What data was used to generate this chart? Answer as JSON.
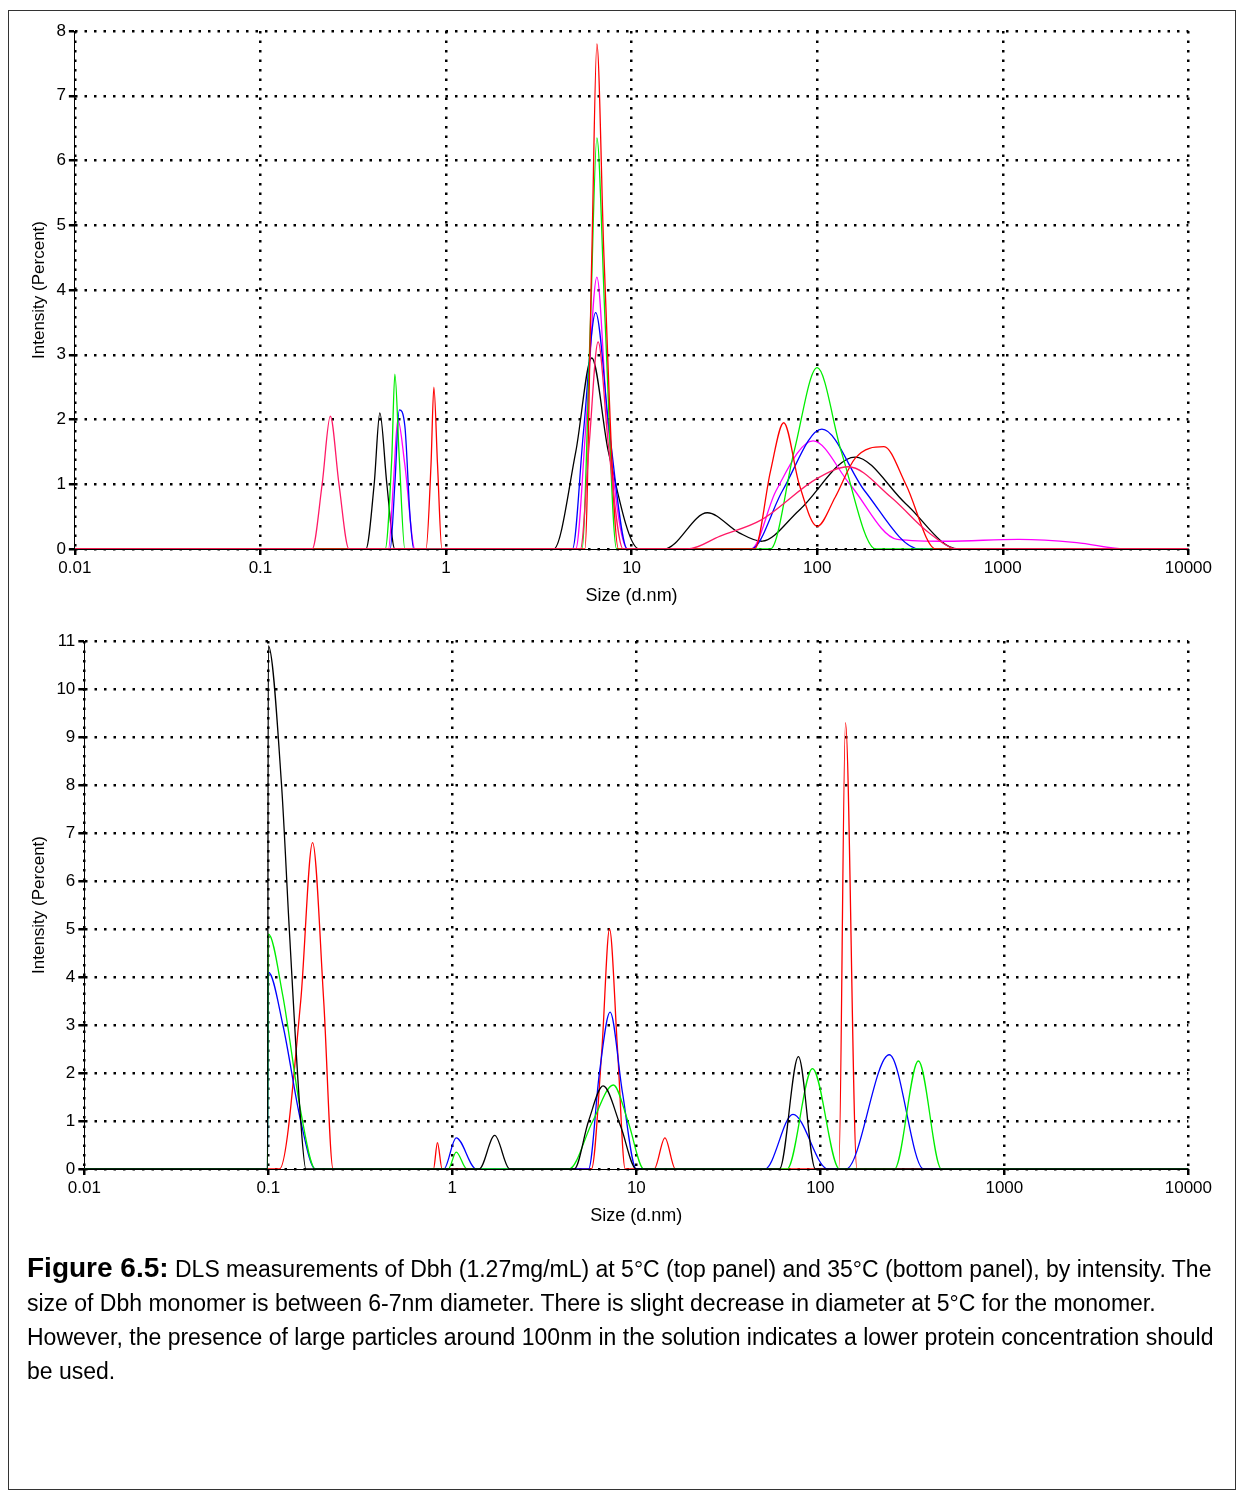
{
  "chart_data": [
    {
      "type": "line",
      "xlabel": "Size (d.nm)",
      "ylabel": "Intensity (Percent)",
      "log": "x",
      "grid": true,
      "legend": false,
      "marker": "none",
      "line_style": "solid",
      "xlim": [
        0.01,
        10000
      ],
      "xticks": [
        0.01,
        0.1,
        1,
        10,
        100,
        1000,
        10000
      ],
      "ylim": [
        0,
        8
      ],
      "yticks": [
        0,
        1,
        2,
        3,
        4,
        5,
        6,
        7,
        8
      ],
      "series": [
        {
          "color": "#ff1a66",
          "x": [
            0.01,
            0.19,
            0.215,
            0.238,
            0.265,
            0.3,
            5.3,
            5.9,
            6.6,
            7.5,
            9,
            20,
            30,
            50,
            100,
            147,
            250,
            400,
            575,
            10000
          ],
          "values": [
            0,
            0,
            1.0,
            2.05,
            1.0,
            0,
            0,
            1.6,
            3.2,
            1.6,
            0,
            0,
            0.2,
            0.45,
            1.09,
            1.27,
            0.8,
            0.25,
            0,
            0
          ]
        },
        {
          "color": "#ff0000",
          "x": [
            0.01,
            0.78,
            0.83,
            0.86,
            0.9,
            0.95,
            5.6,
            6.1,
            6.5,
            7.1,
            8.5,
            46,
            56,
            66,
            80,
            100,
            125,
            160,
            229,
            300,
            436,
            10000
          ],
          "values": [
            0,
            0,
            1.3,
            2.5,
            1.3,
            0,
            0,
            4.5,
            7.8,
            4.5,
            0,
            0,
            1.2,
            1.95,
            1.0,
            0.35,
            0.8,
            1.4,
            1.58,
            1.0,
            0,
            0
          ]
        },
        {
          "color": "#00ee00",
          "x": [
            0.01,
            0.47,
            0.51,
            0.53,
            0.56,
            0.6,
            5.4,
            6.0,
            6.5,
            7.2,
            8.3,
            56,
            75,
            100,
            135,
            207,
            10000
          ],
          "values": [
            0,
            0,
            1.4,
            2.7,
            1.4,
            0,
            0,
            3.5,
            6.35,
            3.5,
            0,
            0,
            1.5,
            2.8,
            1.5,
            0,
            0
          ]
        },
        {
          "color": "#0000ff",
          "x": [
            0.01,
            0.5,
            0.53,
            0.56,
            0.6,
            0.64,
            0.67,
            4.8,
            5.5,
            6.4,
            7.6,
            9.5,
            44,
            65,
            106,
            180,
            357,
            10000
          ],
          "values": [
            0,
            0,
            1.0,
            2.15,
            1.9,
            0.5,
            0,
            0,
            1.8,
            3.65,
            1.8,
            0,
            0,
            0.9,
            1.85,
            0.9,
            0,
            0
          ]
        },
        {
          "color": "#ff00ff",
          "x": [
            0.01,
            0.49,
            0.52,
            0.55,
            0.6,
            0.68,
            5.0,
            5.7,
            6.5,
            7.4,
            9.5,
            44,
            60,
            95,
            150,
            270,
            500,
            1230,
            2500,
            4700,
            10000
          ],
          "values": [
            0,
            0,
            1.0,
            2.0,
            1.3,
            0,
            0,
            2.0,
            4.2,
            2.0,
            0,
            0,
            0.9,
            1.67,
            1.0,
            0.15,
            0.12,
            0.15,
            0.1,
            0,
            0
          ]
        },
        {
          "color": "#000000",
          "x": [
            0.01,
            0.37,
            0.41,
            0.44,
            0.48,
            0.53,
            3.8,
            5.0,
            6.1,
            7.5,
            11,
            15,
            25.6,
            38,
            50,
            80,
            160,
            300,
            575,
            10000
          ],
          "values": [
            0,
            0,
            1.0,
            2.1,
            1.0,
            0,
            0,
            1.5,
            2.95,
            1.5,
            0,
            0,
            0.56,
            0.25,
            0.12,
            0.6,
            1.42,
            0.7,
            0,
            0
          ]
        }
      ]
    },
    {
      "type": "line",
      "xlabel": "Size (d.nm)",
      "ylabel": "Intensity (Percent)",
      "log": "x",
      "grid": true,
      "legend": false,
      "marker": "none",
      "line_style": "solid",
      "xlim": [
        0.01,
        10000
      ],
      "xticks": [
        0.01,
        0.1,
        1,
        10,
        100,
        1000,
        10000
      ],
      "ylim": [
        0,
        11
      ],
      "yticks": [
        0,
        1,
        2,
        3,
        4,
        5,
        6,
        7,
        8,
        9,
        10,
        11
      ],
      "series": [
        {
          "color": "#000000",
          "x": [
            0.01,
            0.099,
            0.1,
            0.118,
            0.13,
            0.15,
            0.16,
            1.4,
            1.7,
            2.05,
            4.6,
            5.5,
            6.6,
            8.2,
            10,
            60,
            76,
            94,
            10000
          ],
          "values": [
            0,
            0,
            10.9,
            8,
            5,
            1.0,
            0,
            0,
            0.7,
            0,
            0,
            1.0,
            1.73,
            0.9,
            0,
            0,
            2.34,
            0,
            0
          ]
        },
        {
          "color": "#00ee00",
          "x": [
            0.01,
            0.099,
            0.1,
            0.12,
            0.15,
            0.18,
            0.95,
            1.05,
            1.2,
            4.3,
            5.8,
            7.5,
            9,
            11,
            66,
            90.6,
            127,
            253,
            341,
            455,
            10000
          ],
          "values": [
            0,
            0,
            4.9,
            3.6,
            1.2,
            0,
            0,
            0.35,
            0,
            0,
            1.0,
            1.75,
            1.0,
            0,
            0,
            2.09,
            0,
            0,
            2.25,
            0,
            0
          ]
        },
        {
          "color": "#0000ff",
          "x": [
            0.01,
            0.099,
            0.1,
            0.12,
            0.15,
            0.18,
            0.9,
            1.05,
            1.35,
            5.5,
            6.3,
            7.2,
            8.4,
            10,
            50,
            71,
            110,
            138,
            237,
            364,
            10000
          ],
          "values": [
            0,
            0,
            4.1,
            3.0,
            1.0,
            0,
            0,
            0.65,
            0,
            0,
            2.0,
            3.27,
            1.6,
            0,
            0,
            1.14,
            0,
            0,
            2.38,
            0,
            0
          ]
        },
        {
          "color": "#ff0000",
          "x": [
            0.01,
            0.115,
            0.15,
            0.174,
            0.2,
            0.225,
            0.79,
            0.83,
            0.88,
            5.7,
            6.5,
            7.15,
            7.9,
            8.7,
            12.5,
            14.3,
            16.3,
            126,
            137,
            158,
            10000
          ],
          "values": [
            0,
            0,
            3.5,
            6.8,
            3.5,
            0,
            0,
            0.55,
            0,
            0,
            2.5,
            5.0,
            2.5,
            0,
            0,
            0.65,
            0,
            0,
            9.3,
            0,
            0
          ]
        }
      ],
      "annotations": [
        "Figure 6.5:",
        "DLS measurements of Dbh (1.27mg/mL) at 5°C (top panel) and 35°C (bottom panel), by intensity. The size of Dbh monomer is between 6-7nm diameter. There is slight decrease in diameter at 5°C for the monomer. However, the presence of large particles around 100nm in the solution indicates a lower protein concentration should be used."
      ]
    }
  ]
}
